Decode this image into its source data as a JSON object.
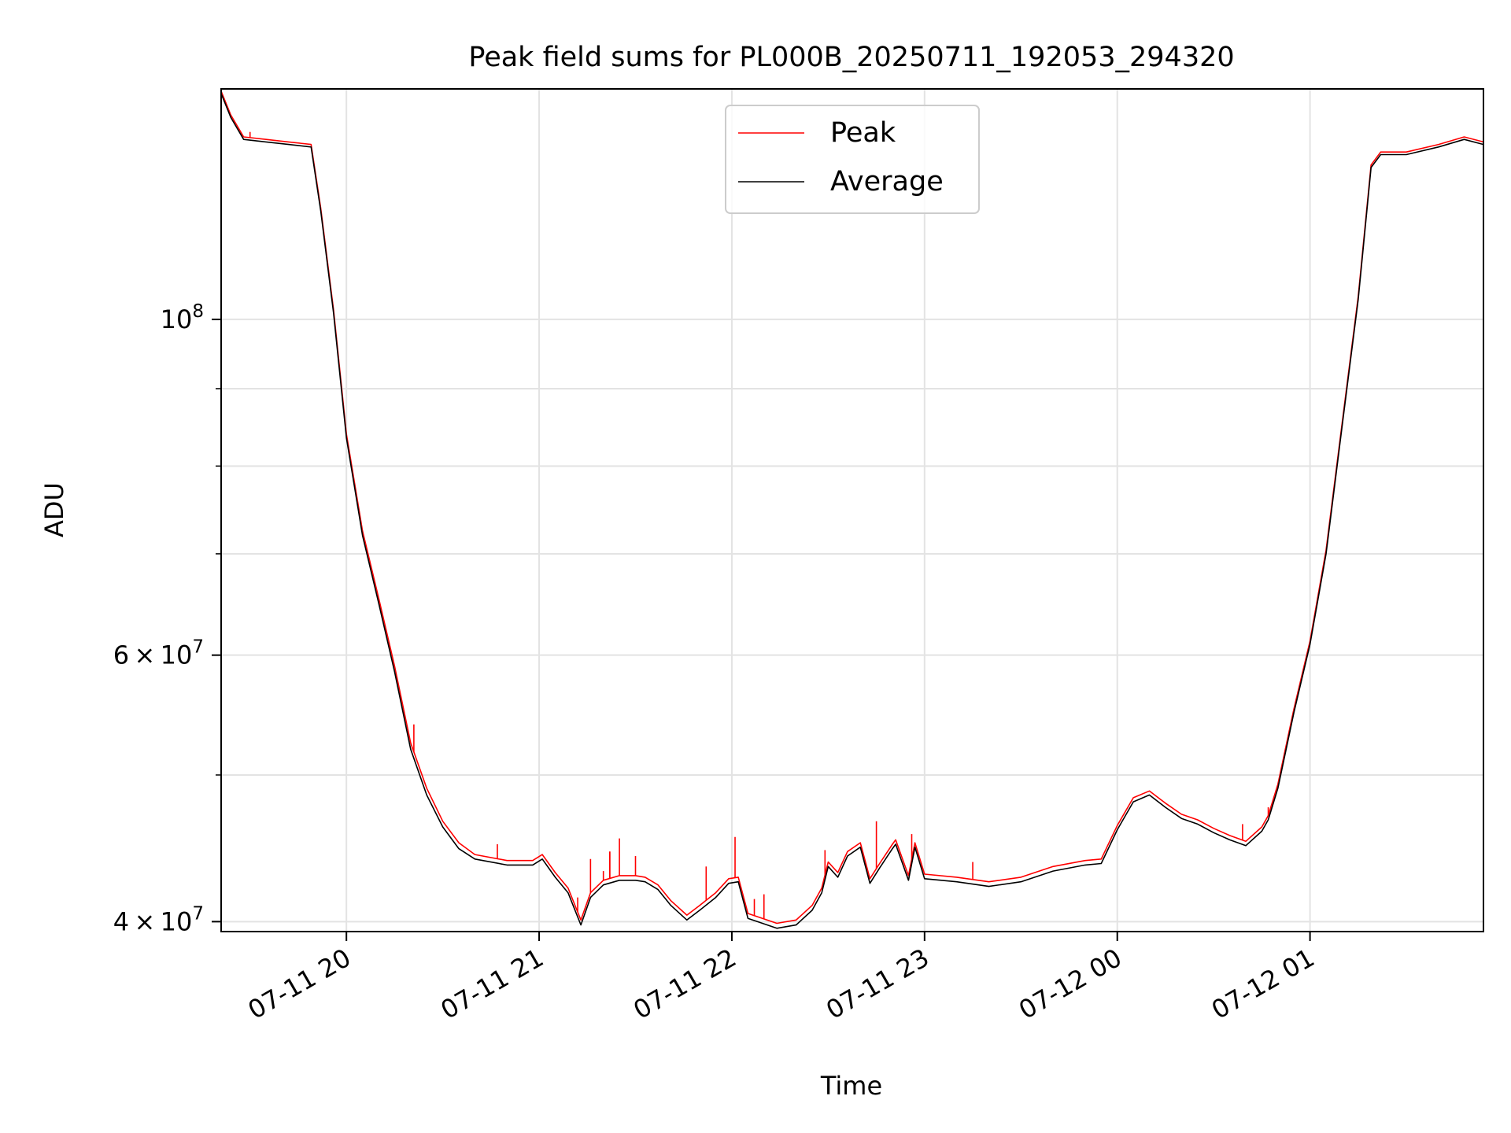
{
  "chart_data": {
    "type": "line",
    "title": "Peak field sums for PL000B_20250711_192053_294320",
    "xlabel": "Time",
    "ylabel": "ADU",
    "yscale": "log",
    "xlim": [
      "2025-07-11 19:21",
      "2025-07-12 01:54"
    ],
    "ylim": [
      39400000,
      142000000
    ],
    "x_ticks": [
      {
        "t": "2025-07-11 20:00",
        "label": "07-11 20"
      },
      {
        "t": "2025-07-11 21:00",
        "label": "07-11 21"
      },
      {
        "t": "2025-07-11 22:00",
        "label": "07-11 22"
      },
      {
        "t": "2025-07-11 23:00",
        "label": "07-11 23"
      },
      {
        "t": "2025-07-12 00:00",
        "label": "07-12 00"
      },
      {
        "t": "2025-07-12 01:00",
        "label": "07-12 01"
      }
    ],
    "y_major_ticks": [
      {
        "value": 40000000,
        "mantissa": "4",
        "exp": "7"
      },
      {
        "value": 60000000,
        "mantissa": "6",
        "exp": "7"
      },
      {
        "value": 100000000,
        "mantissa": "",
        "exp": "8"
      }
    ],
    "y_minor_grid": [
      50000000,
      70000000,
      80000000,
      90000000
    ],
    "grid": true,
    "legend": {
      "placement": "top-center",
      "entries": [
        "Peak",
        "Average"
      ]
    },
    "colors": {
      "Peak": "#ff0000",
      "Average": "#000000"
    },
    "series": [
      {
        "name": "Average",
        "x": [
          "2025-07-11 19:21",
          "2025-07-11 19:24",
          "2025-07-11 19:28",
          "2025-07-11 19:35",
          "2025-07-11 19:42",
          "2025-07-11 19:49",
          "2025-07-11 19:52",
          "2025-07-11 19:56",
          "2025-07-11 20:00",
          "2025-07-11 20:05",
          "2025-07-11 20:10",
          "2025-07-11 20:15",
          "2025-07-11 20:20",
          "2025-07-11 20:25",
          "2025-07-11 20:30",
          "2025-07-11 20:35",
          "2025-07-11 20:40",
          "2025-07-11 20:50",
          "2025-07-11 20:58",
          "2025-07-11 21:01",
          "2025-07-11 21:05",
          "2025-07-11 21:09",
          "2025-07-11 21:13",
          "2025-07-11 21:16",
          "2025-07-11 21:20",
          "2025-07-11 21:25",
          "2025-07-11 21:30",
          "2025-07-11 21:33",
          "2025-07-11 21:37",
          "2025-07-11 21:41",
          "2025-07-11 21:46",
          "2025-07-11 21:50",
          "2025-07-11 21:55",
          "2025-07-11 21:59",
          "2025-07-11 22:02",
          "2025-07-11 22:05",
          "2025-07-11 22:08",
          "2025-07-11 22:14",
          "2025-07-11 22:20",
          "2025-07-11 22:25",
          "2025-07-11 22:28",
          "2025-07-11 22:30",
          "2025-07-11 22:33",
          "2025-07-11 22:36",
          "2025-07-11 22:40",
          "2025-07-11 22:43",
          "2025-07-11 22:46",
          "2025-07-11 22:50",
          "2025-07-11 22:51",
          "2025-07-11 22:55",
          "2025-07-11 22:57",
          "2025-07-11 23:00",
          "2025-07-11 23:10",
          "2025-07-11 23:20",
          "2025-07-11 23:30",
          "2025-07-11 23:40",
          "2025-07-11 23:50",
          "2025-07-11 23:55",
          "2025-07-12 00:00",
          "2025-07-12 00:05",
          "2025-07-12 00:10",
          "2025-07-12 00:15",
          "2025-07-12 00:20",
          "2025-07-12 00:25",
          "2025-07-12 00:30",
          "2025-07-12 00:35",
          "2025-07-12 00:40",
          "2025-07-12 00:45",
          "2025-07-12 00:47",
          "2025-07-12 00:50",
          "2025-07-12 00:55",
          "2025-07-12 01:00",
          "2025-07-12 01:05",
          "2025-07-12 01:10",
          "2025-07-12 01:15",
          "2025-07-12 01:19",
          "2025-07-12 01:22",
          "2025-07-12 01:30",
          "2025-07-12 01:40",
          "2025-07-12 01:48",
          "2025-07-12 01:54"
        ],
        "y": [
          141000000,
          136000000,
          131500000,
          131000000,
          130500000,
          130000000,
          118000000,
          101000000,
          83500000,
          72000000,
          65000000,
          58500000,
          52000000,
          48500000,
          46200000,
          44700000,
          44000000,
          43600000,
          43600000,
          44000000,
          42800000,
          41800000,
          39800000,
          41500000,
          42300000,
          42600000,
          42600000,
          42500000,
          42000000,
          41000000,
          40100000,
          40700000,
          41500000,
          42400000,
          42500000,
          40200000,
          40000000,
          39600000,
          39800000,
          40700000,
          41800000,
          43500000,
          42800000,
          44200000,
          44800000,
          42400000,
          43400000,
          44700000,
          45000000,
          42600000,
          44800000,
          42700000,
          42500000,
          42200000,
          42500000,
          43200000,
          43600000,
          43700000,
          46000000,
          48000000,
          48500000,
          47600000,
          46800000,
          46400000,
          45800000,
          45300000,
          44900000,
          45900000,
          46700000,
          49000000,
          55000000,
          61000000,
          70000000,
          85000000,
          103000000,
          126000000,
          128500000,
          128500000,
          130000000,
          131500000,
          130500000
        ]
      },
      {
        "name": "Peak",
        "x": [
          "2025-07-11 19:21",
          "2025-07-11 19:24",
          "2025-07-11 19:28",
          "2025-07-11 19:35",
          "2025-07-11 19:42",
          "2025-07-11 19:49",
          "2025-07-11 19:52",
          "2025-07-11 19:56",
          "2025-07-11 20:00",
          "2025-07-11 20:05",
          "2025-07-11 20:10",
          "2025-07-11 20:15",
          "2025-07-11 20:20",
          "2025-07-11 20:25",
          "2025-07-11 20:30",
          "2025-07-11 20:35",
          "2025-07-11 20:40",
          "2025-07-11 20:50",
          "2025-07-11 20:58",
          "2025-07-11 21:01",
          "2025-07-11 21:05",
          "2025-07-11 21:09",
          "2025-07-11 21:13",
          "2025-07-11 21:16",
          "2025-07-11 21:20",
          "2025-07-11 21:25",
          "2025-07-11 21:30",
          "2025-07-11 21:33",
          "2025-07-11 21:37",
          "2025-07-11 21:41",
          "2025-07-11 21:46",
          "2025-07-11 21:50",
          "2025-07-11 21:55",
          "2025-07-11 21:59",
          "2025-07-11 22:02",
          "2025-07-11 22:05",
          "2025-07-11 22:08",
          "2025-07-11 22:14",
          "2025-07-11 22:20",
          "2025-07-11 22:25",
          "2025-07-11 22:28",
          "2025-07-11 22:30",
          "2025-07-11 22:33",
          "2025-07-11 22:36",
          "2025-07-11 22:40",
          "2025-07-11 22:43",
          "2025-07-11 22:46",
          "2025-07-11 22:50",
          "2025-07-11 22:51",
          "2025-07-11 22:55",
          "2025-07-11 22:57",
          "2025-07-11 23:00",
          "2025-07-11 23:10",
          "2025-07-11 23:20",
          "2025-07-11 23:30",
          "2025-07-11 23:40",
          "2025-07-11 23:50",
          "2025-07-11 23:55",
          "2025-07-12 00:00",
          "2025-07-12 00:05",
          "2025-07-12 00:10",
          "2025-07-12 00:15",
          "2025-07-12 00:20",
          "2025-07-12 00:25",
          "2025-07-12 00:30",
          "2025-07-12 00:35",
          "2025-07-12 00:40",
          "2025-07-12 00:45",
          "2025-07-12 00:47",
          "2025-07-12 00:50",
          "2025-07-12 00:55",
          "2025-07-12 01:00",
          "2025-07-12 01:05",
          "2025-07-12 01:10",
          "2025-07-12 01:15",
          "2025-07-12 01:19",
          "2025-07-12 01:22",
          "2025-07-12 01:30",
          "2025-07-12 01:40",
          "2025-07-12 01:48",
          "2025-07-12 01:54"
        ],
        "y": [
          141500000,
          136500000,
          132000000,
          131500000,
          131000000,
          130500000,
          118500000,
          101500000,
          84000000,
          72500000,
          65500000,
          59000000,
          52500000,
          49000000,
          46600000,
          45100000,
          44300000,
          43900000,
          43900000,
          44300000,
          43100000,
          42100000,
          40100000,
          41800000,
          42600000,
          42900000,
          42900000,
          42800000,
          42300000,
          41300000,
          40400000,
          41000000,
          41800000,
          42700000,
          42800000,
          40500000,
          40300000,
          39900000,
          40100000,
          41000000,
          42100000,
          43800000,
          43100000,
          44500000,
          45100000,
          42700000,
          43700000,
          45000000,
          45300000,
          42900000,
          45100000,
          43000000,
          42800000,
          42500000,
          42800000,
          43500000,
          43900000,
          44000000,
          46300000,
          48300000,
          48800000,
          47900000,
          47100000,
          46700000,
          46100000,
          45600000,
          45200000,
          46200000,
          47000000,
          49300000,
          55300000,
          61300000,
          70400000,
          85400000,
          103500000,
          126500000,
          129000000,
          129000000,
          130500000,
          132000000,
          131000000
        ],
        "spikes": [
          {
            "x": "2025-07-11 19:30",
            "y": 133000000
          },
          {
            "x": "2025-07-11 20:13",
            "y": 61500000
          },
          {
            "x": "2025-07-11 20:21",
            "y": 54000000
          },
          {
            "x": "2025-07-11 20:47",
            "y": 45000000
          },
          {
            "x": "2025-07-11 21:12",
            "y": 41500000
          },
          {
            "x": "2025-07-11 21:16",
            "y": 44000000
          },
          {
            "x": "2025-07-11 21:22",
            "y": 44500000
          },
          {
            "x": "2025-07-11 21:20",
            "y": 43200000
          },
          {
            "x": "2025-07-11 21:22",
            "y": 44500000
          },
          {
            "x": "2025-07-11 21:25",
            "y": 45400000
          },
          {
            "x": "2025-07-11 21:30",
            "y": 44200000
          },
          {
            "x": "2025-07-11 21:52",
            "y": 43500000
          },
          {
            "x": "2025-07-11 22:01",
            "y": 45500000
          },
          {
            "x": "2025-07-11 22:07",
            "y": 41400000
          },
          {
            "x": "2025-07-11 22:10",
            "y": 41700000
          },
          {
            "x": "2025-07-11 22:29",
            "y": 44600000
          },
          {
            "x": "2025-07-11 22:45",
            "y": 46600000
          },
          {
            "x": "2025-07-11 22:56",
            "y": 45700000
          },
          {
            "x": "2025-07-11 23:15",
            "y": 43800000
          },
          {
            "x": "2025-07-12 00:39",
            "y": 46400000
          },
          {
            "x": "2025-07-12 00:47",
            "y": 47600000
          }
        ]
      }
    ]
  }
}
